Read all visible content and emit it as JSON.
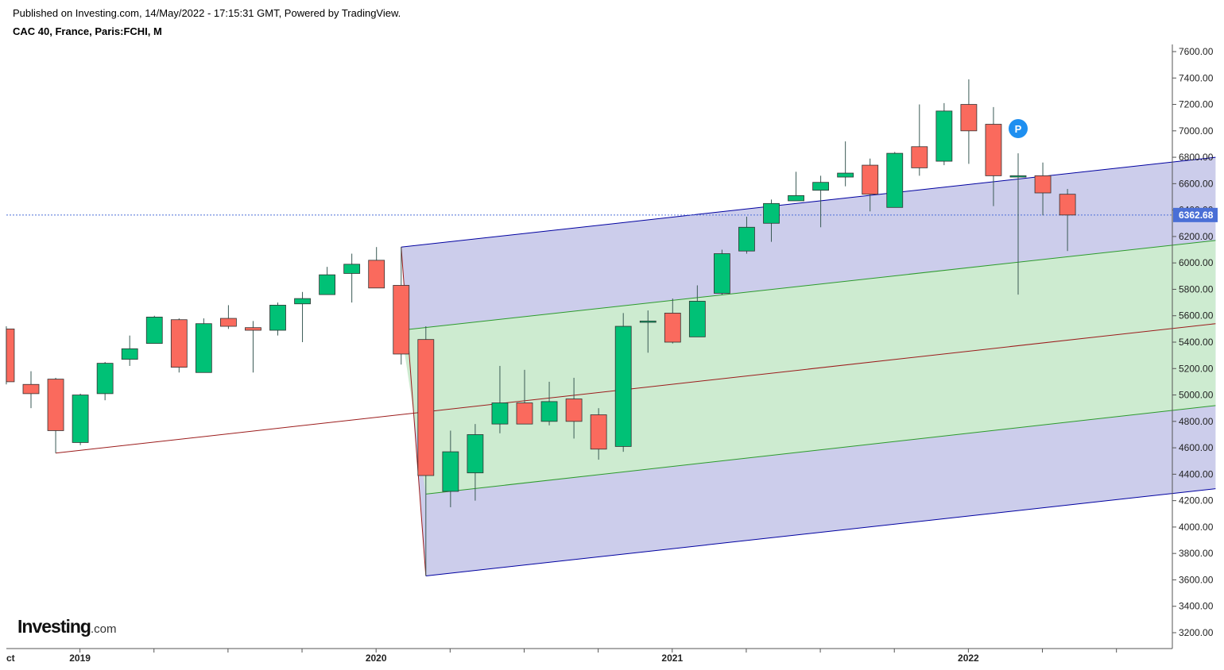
{
  "header": {
    "published": "Published on Investing.com, 14/May/2022 - 17:15:31 GMT, Powered by TradingView.",
    "symbol": "CAC 40, France, Paris:FCHI, M"
  },
  "logo": {
    "main": "Investing",
    "suffix": ".com"
  },
  "chart_data": {
    "type": "candlestick",
    "interval": "M",
    "y_range": [
      3050,
      7700
    ],
    "y_ticks": [
      "3200.00",
      "3400.00",
      "3600.00",
      "3800.00",
      "4000.00",
      "4200.00",
      "4400.00",
      "4600.00",
      "4800.00",
      "5000.00",
      "5200.00",
      "5400.00",
      "5600.00",
      "5800.00",
      "6000.00",
      "6200.00",
      "6400.00",
      "6600.00",
      "6800.00",
      "7000.00",
      "7200.00",
      "7400.00",
      "7600.00"
    ],
    "x_labels": [
      {
        "label": "ct",
        "month": "2018-10"
      },
      {
        "label": "2019",
        "month": "2019-01"
      },
      {
        "label": "2020",
        "month": "2020-01"
      },
      {
        "label": "2021",
        "month": "2021-01"
      },
      {
        "label": "2022",
        "month": "2022-01"
      }
    ],
    "last_price": "6362.68",
    "last_price_value": 6362.68,
    "marker_label": "P",
    "colors": {
      "up": "#00c176",
      "down": "#fa6a5d",
      "wick": "#3a5a55",
      "pitchfork_outer": "#0000a0",
      "pitchfork_inner": "#2c9a2c",
      "median": "#9b1b1b",
      "outer_fill": "#cccdeb",
      "inner_fill": "#cdebd0",
      "price_line": "#4c6fd8",
      "price_badge": "#4a6fd6",
      "marker": "#1e8ff0"
    },
    "candles": [
      {
        "month": "2018-10",
        "o": 5500,
        "h": 5520,
        "l": 5080,
        "c": 5100
      },
      {
        "month": "2018-11",
        "o": 5080,
        "h": 5180,
        "l": 4900,
        "c": 5010
      },
      {
        "month": "2018-12",
        "o": 5120,
        "h": 5130,
        "l": 4560,
        "c": 4730
      },
      {
        "month": "2019-01",
        "o": 4640,
        "h": 5010,
        "l": 4620,
        "c": 5000
      },
      {
        "month": "2019-02",
        "o": 5010,
        "h": 5250,
        "l": 4960,
        "c": 5240
      },
      {
        "month": "2019-03",
        "o": 5270,
        "h": 5450,
        "l": 5220,
        "c": 5350
      },
      {
        "month": "2019-04",
        "o": 5390,
        "h": 5600,
        "l": 5390,
        "c": 5590
      },
      {
        "month": "2019-05",
        "o": 5570,
        "h": 5580,
        "l": 5170,
        "c": 5210
      },
      {
        "month": "2019-06",
        "o": 5170,
        "h": 5580,
        "l": 5170,
        "c": 5540
      },
      {
        "month": "2019-07",
        "o": 5580,
        "h": 5680,
        "l": 5500,
        "c": 5520
      },
      {
        "month": "2019-08",
        "o": 5510,
        "h": 5560,
        "l": 5170,
        "c": 5490
      },
      {
        "month": "2019-09",
        "o": 5490,
        "h": 5700,
        "l": 5450,
        "c": 5680
      },
      {
        "month": "2019-10",
        "o": 5690,
        "h": 5780,
        "l": 5400,
        "c": 5730
      },
      {
        "month": "2019-11",
        "o": 5760,
        "h": 5970,
        "l": 5760,
        "c": 5910
      },
      {
        "month": "2019-12",
        "o": 5920,
        "h": 6070,
        "l": 5700,
        "c": 5990
      },
      {
        "month": "2020-01",
        "o": 6020,
        "h": 6120,
        "l": 5810,
        "c": 5810
      },
      {
        "month": "2020-02",
        "o": 5830,
        "h": 6120,
        "l": 5230,
        "c": 5310
      },
      {
        "month": "2020-03",
        "o": 5420,
        "h": 5520,
        "l": 3630,
        "c": 4390
      },
      {
        "month": "2020-04",
        "o": 4270,
        "h": 4730,
        "l": 4150,
        "c": 4570
      },
      {
        "month": "2020-05",
        "o": 4410,
        "h": 4780,
        "l": 4200,
        "c": 4700
      },
      {
        "month": "2020-06",
        "o": 4780,
        "h": 5220,
        "l": 4710,
        "c": 4940
      },
      {
        "month": "2020-07",
        "o": 4940,
        "h": 5190,
        "l": 4780,
        "c": 4780
      },
      {
        "month": "2020-08",
        "o": 4800,
        "h": 5100,
        "l": 4770,
        "c": 4950
      },
      {
        "month": "2020-09",
        "o": 4970,
        "h": 5130,
        "l": 4670,
        "c": 4800
      },
      {
        "month": "2020-10",
        "o": 4850,
        "h": 4900,
        "l": 4510,
        "c": 4590
      },
      {
        "month": "2020-11",
        "o": 4610,
        "h": 5620,
        "l": 4570,
        "c": 5520
      },
      {
        "month": "2020-12",
        "o": 5550,
        "h": 5640,
        "l": 5320,
        "c": 5560
      },
      {
        "month": "2021-01",
        "o": 5620,
        "h": 5730,
        "l": 5390,
        "c": 5400
      },
      {
        "month": "2021-02",
        "o": 5440,
        "h": 5830,
        "l": 5440,
        "c": 5710
      },
      {
        "month": "2021-03",
        "o": 5770,
        "h": 6100,
        "l": 5760,
        "c": 6070
      },
      {
        "month": "2021-04",
        "o": 6090,
        "h": 6350,
        "l": 6070,
        "c": 6270
      },
      {
        "month": "2021-05",
        "o": 6300,
        "h": 6480,
        "l": 6160,
        "c": 6450
      },
      {
        "month": "2021-06",
        "o": 6470,
        "h": 6690,
        "l": 6470,
        "c": 6510
      },
      {
        "month": "2021-07",
        "o": 6550,
        "h": 6660,
        "l": 6270,
        "c": 6610
      },
      {
        "month": "2021-08",
        "o": 6650,
        "h": 6920,
        "l": 6580,
        "c": 6680
      },
      {
        "month": "2021-09",
        "o": 6740,
        "h": 6790,
        "l": 6390,
        "c": 6520
      },
      {
        "month": "2021-10",
        "o": 6420,
        "h": 6840,
        "l": 6420,
        "c": 6830
      },
      {
        "month": "2021-11",
        "o": 6880,
        "h": 7200,
        "l": 6660,
        "c": 6720
      },
      {
        "month": "2021-12",
        "o": 6770,
        "h": 7210,
        "l": 6740,
        "c": 7150
      },
      {
        "month": "2022-01",
        "o": 7200,
        "h": 7390,
        "l": 6750,
        "c": 7000
      },
      {
        "month": "2022-02",
        "o": 7050,
        "h": 7180,
        "l": 6430,
        "c": 6660
      },
      {
        "month": "2022-03",
        "o": 6650,
        "h": 6830,
        "l": 5760,
        "c": 6660
      },
      {
        "month": "2022-04",
        "o": 6660,
        "h": 6760,
        "l": 6360,
        "c": 6530
      },
      {
        "month": "2022-05",
        "o": 6520,
        "h": 6560,
        "l": 6090,
        "c": 6362.68
      }
    ],
    "pitchfork": {
      "pivot_a": {
        "month": "2020-02",
        "value": 6120
      },
      "pivot_b": {
        "month": "2020-03",
        "value": 3630
      },
      "median_origin": {
        "month": "2018-12",
        "value": 4560
      },
      "upper_end": {
        "month": "2022-11",
        "value": 6800
      },
      "lower_end": {
        "month": "2022-11",
        "value": 4290
      },
      "median_end": {
        "month": "2022-11",
        "value": 5540
      },
      "inner_upper_start": {
        "month": "2020-02",
        "value": 5490
      },
      "inner_upper_end": {
        "month": "2022-11",
        "value": 6170
      },
      "inner_lower_start": {
        "month": "2020-03",
        "value": 4250
      },
      "inner_lower_end": {
        "month": "2022-11",
        "value": 4920
      }
    }
  }
}
